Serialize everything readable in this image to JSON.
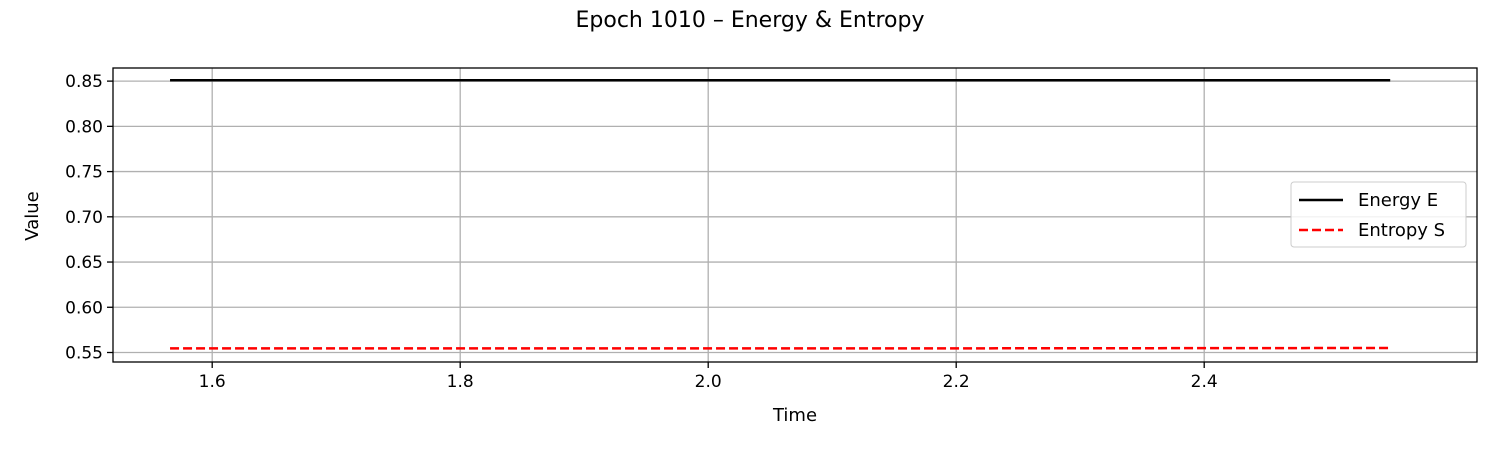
{
  "chart_data": {
    "type": "line",
    "title": "Epoch 1010 – Energy & Entropy",
    "xlabel": "Time",
    "ylabel": "Value",
    "xlim": [
      1.52,
      2.62
    ],
    "ylim": [
      0.5395,
      0.8645
    ],
    "xticks": [
      1.6,
      1.8,
      2.0,
      2.2,
      2.4
    ],
    "xtick_labels": [
      "1.6",
      "1.8",
      "2.0",
      "2.2",
      "2.4"
    ],
    "yticks": [
      0.55,
      0.6,
      0.65,
      0.7,
      0.75,
      0.8,
      0.85
    ],
    "ytick_labels": [
      "0.55",
      "0.60",
      "0.65",
      "0.70",
      "0.75",
      "0.80",
      "0.85"
    ],
    "grid": true,
    "legend_position": "center-right",
    "series": [
      {
        "name": "Energy E",
        "color": "#000000",
        "style": "solid",
        "x": [
          1.566,
          1.8,
          2.0,
          2.2,
          2.4,
          2.55
        ],
        "y": [
          0.851,
          0.851,
          0.851,
          0.851,
          0.851,
          0.851
        ]
      },
      {
        "name": "Entropy S",
        "color": "#ff0000",
        "style": "dashed",
        "x": [
          1.566,
          1.8,
          2.0,
          2.2,
          2.4,
          2.55
        ],
        "y": [
          0.5545,
          0.5545,
          0.5545,
          0.5546,
          0.5548,
          0.555
        ]
      }
    ]
  }
}
